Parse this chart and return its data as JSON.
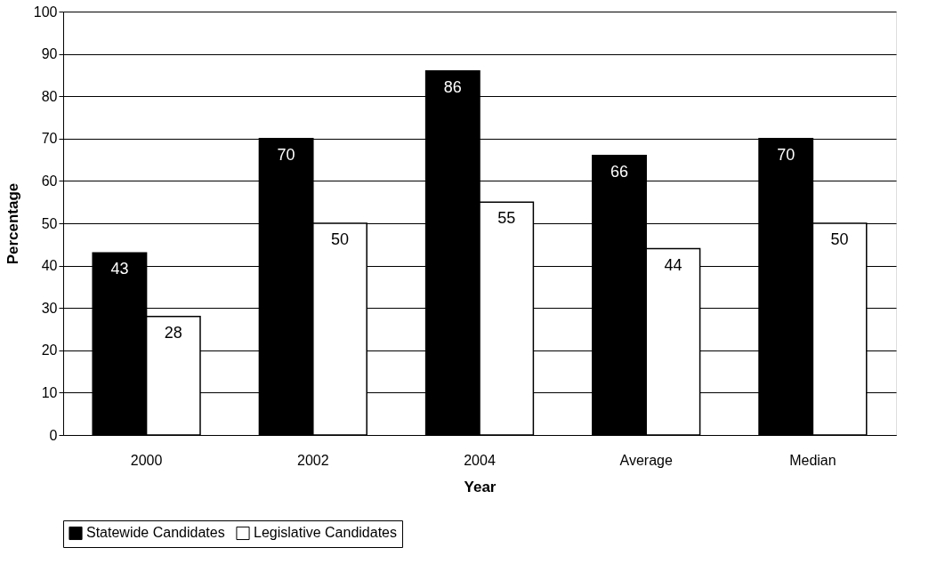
{
  "chart_data": {
    "type": "bar",
    "xlabel": "Year",
    "ylabel": "Percentage",
    "categories": [
      "2000",
      "2002",
      "2004",
      "Average",
      "Median"
    ],
    "series": [
      {
        "name": "Statewide Candidates",
        "color": "#000000",
        "values": [
          43,
          70,
          86,
          66,
          70
        ]
      },
      {
        "name": "Legislative Candidates",
        "color": "#ffffff",
        "values": [
          28,
          50,
          55,
          44,
          50
        ]
      }
    ],
    "ylim": [
      0,
      100
    ],
    "yticks": [
      0,
      10,
      20,
      30,
      40,
      50,
      60,
      70,
      80,
      90,
      100
    ],
    "grid": "y",
    "legend": "bottom",
    "data_labels": true
  }
}
